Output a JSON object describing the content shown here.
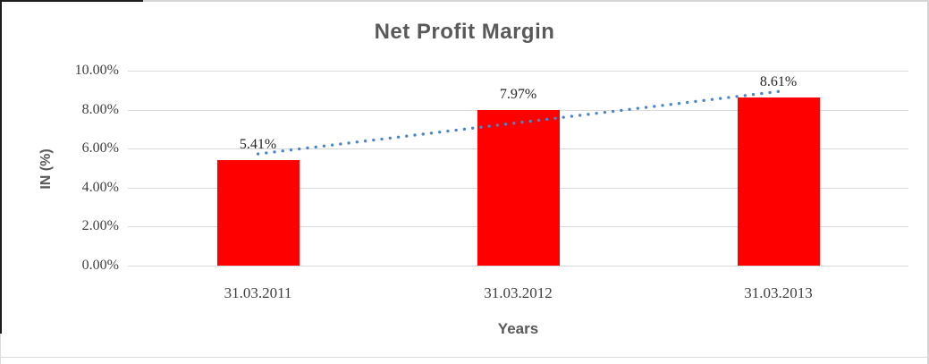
{
  "chart_data": {
    "type": "bar",
    "title": "Net Profit Margin",
    "xlabel": "Years",
    "ylabel": "IN (%)",
    "categories": [
      "31.03.2011",
      "31.03.2012",
      "31.03.2013"
    ],
    "values": [
      5.41,
      7.97,
      8.61
    ],
    "data_labels": [
      "5.41%",
      "7.97%",
      "8.61%"
    ],
    "ylim": [
      0,
      10
    ],
    "ytick_values": [
      0,
      2,
      4,
      6,
      8,
      10
    ],
    "ytick_labels": [
      "0.00%",
      "2.00%",
      "4.00%",
      "6.00%",
      "8.00%",
      "10.00%"
    ],
    "grid": true,
    "legend": "none",
    "bar_color": "#ff0000",
    "gridline_color": "#d9d9d9",
    "trendline": {
      "type": "linear",
      "style": "dotted",
      "color": "#4a86c8"
    }
  }
}
